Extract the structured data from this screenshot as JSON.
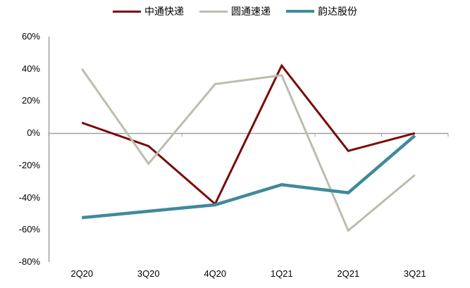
{
  "chart_data": {
    "type": "line",
    "title": "",
    "xlabel": "",
    "ylabel": "",
    "categories": [
      "2Q20",
      "3Q20",
      "4Q20",
      "1Q21",
      "2Q21",
      "3Q21"
    ],
    "ylim": [
      -80,
      60
    ],
    "yticks": [
      60,
      40,
      20,
      0,
      -20,
      -40,
      -60,
      -80
    ],
    "ytick_labels": [
      "60%",
      "40%",
      "20%",
      "0%",
      "-20%",
      "-40%",
      "-60%",
      "-80%"
    ],
    "grid": false,
    "legend_position": "top",
    "series": [
      {
        "name": "中通快递",
        "color": "#7a0a0a",
        "width": 3,
        "values": [
          6.5,
          -8,
          -44,
          42,
          -11,
          0
        ]
      },
      {
        "name": "圆通速递",
        "color": "#bdbcaf",
        "width": 3,
        "values": [
          40,
          -19,
          30.5,
          36,
          -60.5,
          -26
        ]
      },
      {
        "name": "韵达股份",
        "color": "#3f8a9a",
        "width": 4.5,
        "values": [
          -52.5,
          -48.5,
          -44.5,
          -32,
          -37,
          -1.5
        ]
      }
    ]
  }
}
